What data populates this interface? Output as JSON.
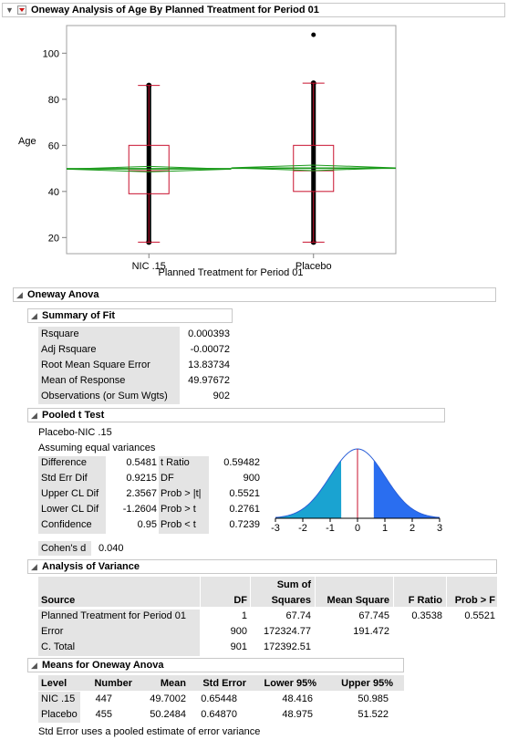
{
  "report": {
    "title": "Oneway Analysis of Age By Planned Treatment for Period 01"
  },
  "chart_data": {
    "type": "box",
    "ylabel": "Age",
    "xlabel": "Planned Treatment for Period 01",
    "categories": [
      "NIC .15",
      "Placebo"
    ],
    "yticks": [
      20,
      40,
      60,
      80,
      100
    ],
    "ylim": [
      13,
      112
    ],
    "boxes": [
      {
        "name": "NIC .15",
        "min": 18,
        "q1": 39,
        "median": 49,
        "q3": 60,
        "max": 86,
        "outliers": []
      },
      {
        "name": "Placebo",
        "min": 18,
        "q1": 40,
        "median": 49,
        "q3": 60,
        "max": 87,
        "outliers": [
          108
        ]
      }
    ],
    "grand_mean": 49.97672,
    "group_means": [
      49.7002,
      50.2484
    ],
    "colors": {
      "box": "#c8102e",
      "data": "#000000",
      "diamond": "#1a9a1a"
    }
  },
  "anova": {
    "title": "Oneway Anova",
    "fit": {
      "title": "Summary of Fit",
      "rows": [
        {
          "label": "Rsquare",
          "value": "0.000393"
        },
        {
          "label": "Adj Rsquare",
          "value": "-0.00072"
        },
        {
          "label": "Root Mean Square Error",
          "value": "13.83734"
        },
        {
          "label": "Mean of Response",
          "value": "49.97672"
        },
        {
          "label": "Observations (or Sum Wgts)",
          "value": "902"
        }
      ]
    },
    "ttest": {
      "title": "Pooled t Test",
      "line1": "Placebo-NIC .15",
      "line2": "Assuming equal variances",
      "left": [
        {
          "label": "Difference",
          "value": "0.5481"
        },
        {
          "label": "Std Err Dif",
          "value": "0.9215"
        },
        {
          "label": "Upper CL Dif",
          "value": "2.3567"
        },
        {
          "label": "Lower CL Dif",
          "value": "-1.2604"
        },
        {
          "label": "Confidence",
          "value": "0.95"
        }
      ],
      "right": [
        {
          "label": "t Ratio",
          "value": "0.59482"
        },
        {
          "label": "DF",
          "value": "900"
        },
        {
          "label": "Prob > |t|",
          "value": "0.5521"
        },
        {
          "label": "Prob > t",
          "value": "0.2761"
        },
        {
          "label": "Prob < t",
          "value": "0.7239"
        }
      ],
      "axis": [
        "-3",
        "-2",
        "-1",
        "0",
        "1",
        "2",
        "3"
      ],
      "t_value": 0.59482,
      "colors": {
        "left_tail": "#1aa3d1",
        "right_tail": "#2a6ef0",
        "curve": "#2a5fd8"
      }
    },
    "cohens": {
      "label": "Cohen's d",
      "value": "0.040"
    },
    "aov": {
      "title": "Analysis of Variance",
      "headers_top": {
        "sum": "Sum of"
      },
      "headers": {
        "source": "Source",
        "df": "DF",
        "ss": "Squares",
        "ms": "Mean Square",
        "f": "F Ratio",
        "p": "Prob > F"
      },
      "rows": [
        {
          "source": "Planned Treatment for Period 01",
          "df": "1",
          "ss": "67.74",
          "ms": "67.745",
          "f": "0.3538",
          "p": "0.5521"
        },
        {
          "source": "Error",
          "df": "900",
          "ss": "172324.77",
          "ms": "191.472",
          "f": "",
          "p": ""
        },
        {
          "source": "C. Total",
          "df": "901",
          "ss": "172392.51",
          "ms": "",
          "f": "",
          "p": ""
        }
      ]
    },
    "means": {
      "title": "Means for Oneway Anova",
      "headers": {
        "level": "Level",
        "number": "Number",
        "mean": "Mean",
        "se": "Std Error",
        "lower": "Lower 95%",
        "upper": "Upper 95%"
      },
      "rows": [
        {
          "level": "NIC .15",
          "number": "447",
          "mean": "49.7002",
          "se": "0.65448",
          "lower": "48.416",
          "upper": "50.985"
        },
        {
          "level": "Placebo",
          "number": "455",
          "mean": "50.2484",
          "se": "0.64870",
          "lower": "48.975",
          "upper": "51.522"
        }
      ],
      "footnote": "Std Error uses a pooled estimate of error variance"
    }
  }
}
